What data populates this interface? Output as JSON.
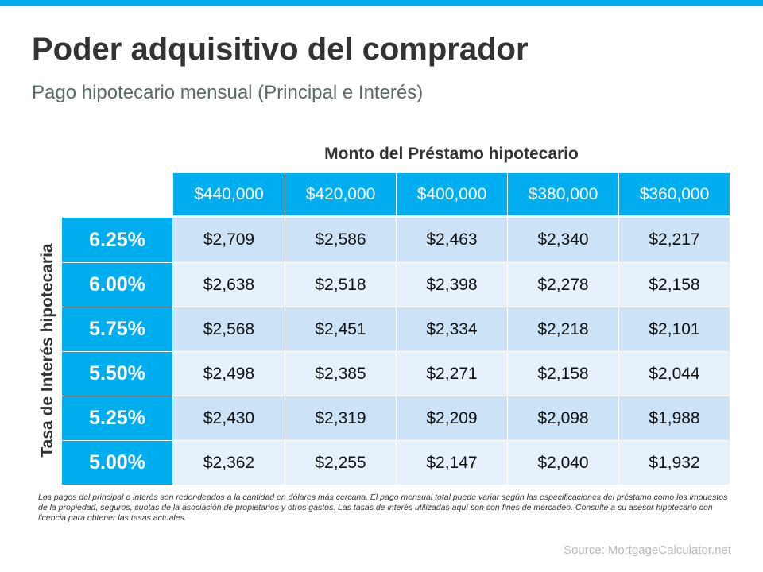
{
  "title": "Poder adquisitivo del comprador",
  "subtitle": "Pago hipotecario mensual (Principal e Interés)",
  "colors": {
    "header": "#00aeef",
    "row_odd": "#cce3f7",
    "row_even": "#e6f1fc"
  },
  "chart_data": {
    "type": "table",
    "column_title": "Monto del Préstamo hipotecario",
    "row_title": "Tasa de Interés hipotecaria",
    "columns": [
      "$440,000",
      "$420,000",
      "$400,000",
      "$380,000",
      "$360,000"
    ],
    "rows": [
      {
        "rate": "6.25%",
        "values": [
          "$2,709",
          "$2,586",
          "$2,463",
          "$2,340",
          "$2,217"
        ]
      },
      {
        "rate": "6.00%",
        "values": [
          "$2,638",
          "$2,518",
          "$2,398",
          "$2,278",
          "$2,158"
        ]
      },
      {
        "rate": "5.75%",
        "values": [
          "$2,568",
          "$2,451",
          "$2,334",
          "$2,218",
          "$2,101"
        ]
      },
      {
        "rate": "5.50%",
        "values": [
          "$2,498",
          "$2,385",
          "$2,271",
          "$2,158",
          "$2,044"
        ]
      },
      {
        "rate": "5.25%",
        "values": [
          "$2,430",
          "$2,319",
          "$2,209",
          "$2,098",
          "$1,988"
        ]
      },
      {
        "rate": "5.00%",
        "values": [
          "$2,362",
          "$2,255",
          "$2,147",
          "$2,040",
          "$1,932"
        ]
      }
    ]
  },
  "footnote": "Los pagos del principal e interés son redondeados a la cantidad en dólares más cercana. El pago mensual total puede variar según las especificaciones del préstamo como los impuestos de la propiedad, seguros, cuotas de la asociación de propietarios y otros gastos. Las tasas de interés utilizadas aquí son con fines de mercadeo. Consulte a su asesor hipotecario con licencia para obtener las tasas actuales.",
  "source": "Source: MortgageCalculator.net"
}
